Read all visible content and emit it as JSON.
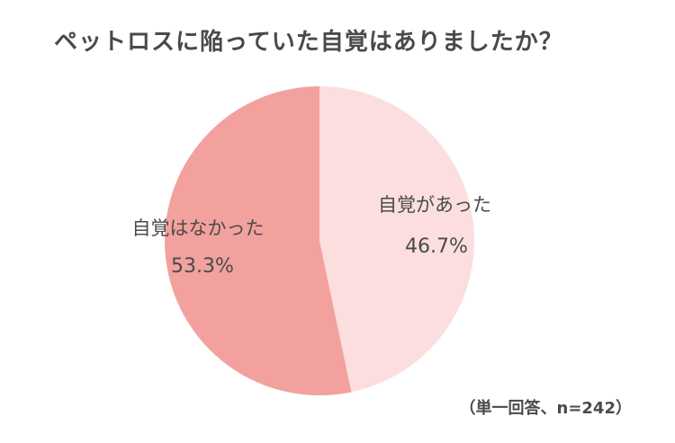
{
  "chart_data": {
    "type": "pie",
    "title": "ペットロスに陥っていた自覚はありましたか？",
    "slices": [
      {
        "label": "自覚があった",
        "value": 46.7,
        "value_label": "46.7%",
        "color": "#fcdede"
      },
      {
        "label": "自覚はなかった",
        "value": 53.3,
        "value_label": "53.3%",
        "color": "#f2a19f"
      }
    ],
    "start_angle": "12 o'clock",
    "direction": "clockwise",
    "note": "（単一回答、n=242）"
  }
}
